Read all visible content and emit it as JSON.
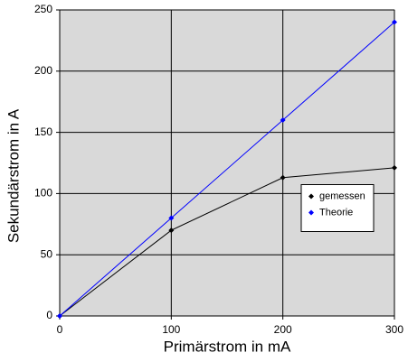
{
  "chart_data": {
    "type": "line",
    "x_label": "Primärstrom in mA",
    "y_label": "Sekundärstrom in A",
    "x": [
      0,
      100,
      200,
      300
    ],
    "series": [
      {
        "name": "gemessen",
        "color": "#000000",
        "values": [
          0,
          70,
          113,
          121
        ]
      },
      {
        "name": "Theorie",
        "color": "#0000ff",
        "values": [
          0,
          80,
          160,
          240
        ]
      }
    ],
    "xlim": [
      0,
      300
    ],
    "xticks": [
      0,
      100,
      200,
      300
    ],
    "ylim": [
      0,
      250
    ],
    "yticks": [
      0,
      50,
      100,
      150,
      200,
      250
    ],
    "grid": true,
    "legend": "right",
    "background": "#d9d9d9"
  }
}
